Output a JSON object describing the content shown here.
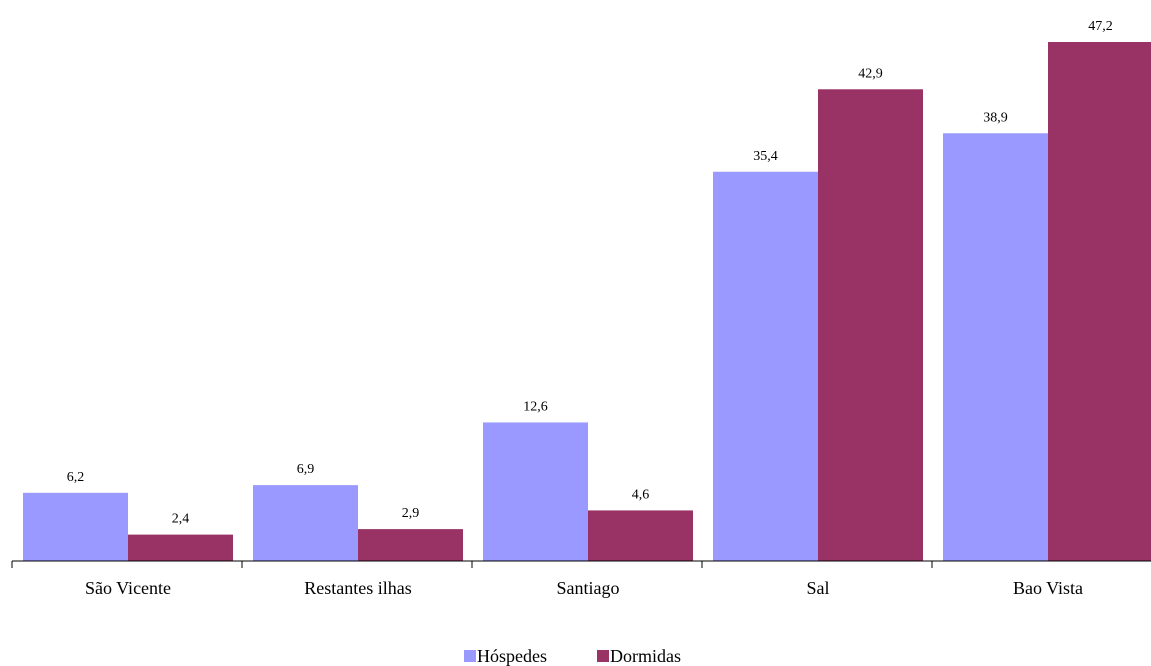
{
  "chart_data": {
    "type": "bar",
    "title": "",
    "xlabel": "",
    "ylabel": "",
    "categories": [
      "São Vicente",
      "Restantes ilhas",
      "Santiago",
      "Sal",
      "Bao Vista"
    ],
    "series": [
      {
        "name": "Hóspedes",
        "color": "#9999ff",
        "values": [
          6.2,
          6.9,
          12.6,
          35.4,
          38.9
        ],
        "labels": [
          "6,2",
          "6,9",
          "12,6",
          "35,4",
          "38,9"
        ]
      },
      {
        "name": "Dormidas",
        "color": "#993366",
        "values": [
          2.4,
          2.9,
          4.6,
          42.9,
          47.2
        ],
        "labels": [
          "2,4",
          "2,9",
          "4,6",
          "42,9",
          "47,2"
        ]
      }
    ],
    "ylim": [
      0,
      47.2
    ],
    "grid": false,
    "legend": "bottom-center"
  }
}
